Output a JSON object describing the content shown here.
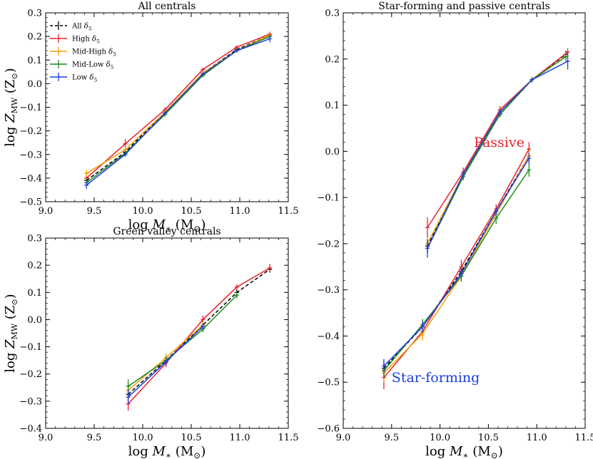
{
  "chart_data": [
    {
      "type": "line",
      "title": "All centrals",
      "xlabel": "log M* (M⊙)",
      "ylabel": "log ZMW (Z⊙)",
      "xlim": [
        9.0,
        11.5
      ],
      "ylim": [
        -0.5,
        0.3
      ],
      "xticks": [
        "9.0",
        "9.5",
        "10.0",
        "10.5",
        "11.0",
        "11.5"
      ],
      "yticks": [
        "−0.5",
        "−0.4",
        "−0.3",
        "−0.2",
        "−0.1",
        "0.0",
        "0.1",
        "0.2",
        "0.3"
      ],
      "legend_position": "top-left",
      "series": [
        {
          "name": "All δ5",
          "color": "#000000",
          "dashed": true,
          "x": [
            9.42,
            9.82,
            10.23,
            10.62,
            10.97,
            11.31
          ],
          "y": [
            -0.41,
            -0.29,
            -0.12,
            0.045,
            0.145,
            0.205
          ],
          "err": [
            0.012,
            0.01,
            0.008,
            0.007,
            0.006,
            0.007
          ]
        },
        {
          "name": "High δ5",
          "color": "#e8212a",
          "dashed": false,
          "x": [
            9.42,
            9.82,
            10.23,
            10.62,
            10.97,
            11.31
          ],
          "y": [
            -0.4,
            -0.255,
            -0.11,
            0.06,
            0.155,
            0.21
          ],
          "err": [
            0.015,
            0.02,
            0.01,
            0.008,
            0.008,
            0.01
          ]
        },
        {
          "name": "Mid-High δ5",
          "color": "#f5a000",
          "dashed": false,
          "x": [
            9.42,
            9.82,
            10.23,
            10.62,
            10.97,
            11.31
          ],
          "y": [
            -0.38,
            -0.28,
            -0.12,
            0.045,
            0.14,
            0.205
          ],
          "err": [
            0.015,
            0.012,
            0.01,
            0.008,
            0.008,
            0.008
          ]
        },
        {
          "name": "Mid-Low δ5",
          "color": "#1f8a1f",
          "dashed": false,
          "x": [
            9.42,
            9.82,
            10.23,
            10.62,
            10.97,
            11.31
          ],
          "y": [
            -0.42,
            -0.295,
            -0.13,
            0.035,
            0.14,
            0.2
          ],
          "err": [
            0.015,
            0.012,
            0.01,
            0.008,
            0.008,
            0.008
          ]
        },
        {
          "name": "Low δ5",
          "color": "#1f3fe0",
          "dashed": false,
          "x": [
            9.42,
            9.82,
            10.23,
            10.62,
            10.97,
            11.31
          ],
          "y": [
            -0.43,
            -0.3,
            -0.125,
            0.04,
            0.14,
            0.19
          ],
          "err": [
            0.015,
            0.01,
            0.01,
            0.008,
            0.008,
            0.015
          ]
        }
      ]
    },
    {
      "type": "line",
      "title": "Green valley centrals",
      "xlabel": "log M* (M⊙)",
      "ylabel": "log ZMW (Z⊙)",
      "xlim": [
        9.0,
        11.5
      ],
      "ylim": [
        -0.4,
        0.3
      ],
      "xticks": [
        "9.0",
        "9.5",
        "10.0",
        "10.5",
        "11.0",
        "11.5"
      ],
      "yticks": [
        "−0.4",
        "−0.3",
        "−0.2",
        "−0.1",
        "0.0",
        "0.1",
        "0.2",
        "0.3"
      ],
      "series": [
        {
          "name": "All δ5",
          "color": "#000000",
          "dashed": true,
          "x": [
            9.85,
            10.24,
            10.62,
            10.97,
            11.31
          ],
          "y": [
            -0.275,
            -0.15,
            -0.02,
            0.1,
            0.185
          ],
          "err": [
            0.02,
            0.012,
            0.01,
            0.01,
            0.012
          ]
        },
        {
          "name": "High δ5",
          "color": "#e8212a",
          "dashed": false,
          "x": [
            9.85,
            10.24,
            10.62,
            10.97,
            11.31
          ],
          "y": [
            -0.31,
            -0.16,
            0.0,
            0.12,
            0.19
          ],
          "err": [
            0.025,
            0.015,
            0.015,
            0.01,
            0.015
          ]
        },
        {
          "name": "Mid-High δ5",
          "color": "#f5a000",
          "dashed": false,
          "x": [
            9.85,
            10.24,
            10.62
          ],
          "y": [
            -0.26,
            -0.14,
            -0.02
          ],
          "err": [
            0.025,
            0.015,
            0.012
          ]
        },
        {
          "name": "Mid-Low δ5",
          "color": "#1f8a1f",
          "dashed": false,
          "x": [
            9.85,
            10.24,
            10.62,
            10.97
          ],
          "y": [
            -0.245,
            -0.15,
            -0.035,
            0.09
          ],
          "err": [
            0.025,
            0.015,
            0.012,
            0.012
          ]
        },
        {
          "name": "Low δ5",
          "color": "#1f3fe0",
          "dashed": false,
          "x": [
            9.85,
            10.24,
            10.62
          ],
          "y": [
            -0.285,
            -0.155,
            -0.025
          ],
          "err": [
            0.025,
            0.015,
            0.012
          ]
        }
      ]
    },
    {
      "type": "line",
      "title": "Star-forming and passive centrals",
      "xlabel": "log M* (M⊙)",
      "ylabel": "",
      "xlim": [
        9.0,
        11.5
      ],
      "ylim": [
        -0.6,
        0.3
      ],
      "xticks": [
        "9.0",
        "9.5",
        "10.0",
        "10.5",
        "11.0",
        "11.5"
      ],
      "yticks": [
        "−0.6",
        "−0.5",
        "−0.4",
        "−0.3",
        "−0.2",
        "−0.1",
        "0.0",
        "0.1",
        "0.2",
        "0.3"
      ],
      "annotations": [
        {
          "text": "Passive",
          "color": "#e8212a",
          "x": 10.35,
          "y": 0.01
        },
        {
          "text": "Star-forming",
          "color": "#1f3fe0",
          "x": 9.5,
          "y": -0.5
        }
      ],
      "series": [
        {
          "name": "All δ5 (Passive)",
          "color": "#000000",
          "dashed": true,
          "x": [
            9.87,
            10.24,
            10.62,
            10.95,
            11.3
          ],
          "y": [
            -0.205,
            -0.05,
            0.08,
            0.155,
            0.21
          ],
          "err": [
            0.012,
            0.008,
            0.006,
            0.005,
            0.008
          ]
        },
        {
          "name": "High δ5 (Passive)",
          "color": "#e8212a",
          "dashed": false,
          "x": [
            9.87,
            10.24,
            10.62,
            10.95,
            11.32
          ],
          "y": [
            -0.165,
            -0.045,
            0.09,
            0.155,
            0.215
          ],
          "err": [
            0.022,
            0.01,
            0.008,
            0.006,
            0.008
          ]
        },
        {
          "name": "Mid-High δ5 (Passive)",
          "color": "#f5a000",
          "dashed": false,
          "x": [
            9.87,
            10.24,
            10.62,
            10.95,
            11.3
          ],
          "y": [
            -0.2,
            -0.05,
            0.085,
            0.155,
            0.205
          ],
          "err": [
            0.012,
            0.008,
            0.006,
            0.005,
            0.01
          ]
        },
        {
          "name": "Mid-Low δ5 (Passive)",
          "color": "#1f8a1f",
          "dashed": false,
          "x": [
            9.87,
            10.24,
            10.62,
            10.95,
            11.3
          ],
          "y": [
            -0.21,
            -0.055,
            0.08,
            0.155,
            0.205
          ],
          "err": [
            0.012,
            0.008,
            0.006,
            0.005,
            0.008
          ]
        },
        {
          "name": "Low δ5 (Passive)",
          "color": "#1f3fe0",
          "dashed": false,
          "x": [
            9.87,
            10.24,
            10.62,
            10.95,
            11.32
          ],
          "y": [
            -0.21,
            -0.05,
            0.085,
            0.155,
            0.195
          ],
          "err": [
            0.02,
            0.008,
            0.006,
            0.005,
            0.018
          ]
        },
        {
          "name": "All δ5 (Star-forming)",
          "color": "#000000",
          "dashed": true,
          "x": [
            9.42,
            9.82,
            10.22,
            10.58,
            10.92
          ],
          "y": [
            -0.47,
            -0.38,
            -0.26,
            -0.13,
            -0.01
          ],
          "err": [
            0.015,
            0.012,
            0.01,
            0.008,
            0.012
          ]
        },
        {
          "name": "High δ5 (Star-forming)",
          "color": "#e8212a",
          "dashed": false,
          "x": [
            9.42,
            9.82,
            10.22,
            10.58,
            10.92
          ],
          "y": [
            -0.49,
            -0.39,
            -0.25,
            -0.125,
            0.005
          ],
          "err": [
            0.025,
            0.015,
            0.015,
            0.01,
            0.015
          ]
        },
        {
          "name": "Mid-High δ5 (Star-forming)",
          "color": "#f5a000",
          "dashed": false,
          "x": [
            9.42,
            9.82,
            10.22,
            10.58,
            10.92
          ],
          "y": [
            -0.48,
            -0.395,
            -0.27,
            -0.135,
            -0.01
          ],
          "err": [
            0.02,
            0.015,
            0.012,
            0.01,
            0.012
          ]
        },
        {
          "name": "Mid-Low δ5 (Star-forming)",
          "color": "#1f8a1f",
          "dashed": false,
          "x": [
            9.42,
            9.82,
            10.22,
            10.58,
            10.92
          ],
          "y": [
            -0.475,
            -0.375,
            -0.27,
            -0.145,
            -0.04
          ],
          "err": [
            0.015,
            0.012,
            0.012,
            0.012,
            0.015
          ]
        },
        {
          "name": "Low δ5 (Star-forming)",
          "color": "#1f3fe0",
          "dashed": false,
          "x": [
            9.42,
            9.82,
            10.22,
            10.58,
            10.92
          ],
          "y": [
            -0.465,
            -0.38,
            -0.265,
            -0.13,
            -0.015
          ],
          "err": [
            0.015,
            0.012,
            0.012,
            0.008,
            0.012
          ]
        }
      ]
    }
  ]
}
